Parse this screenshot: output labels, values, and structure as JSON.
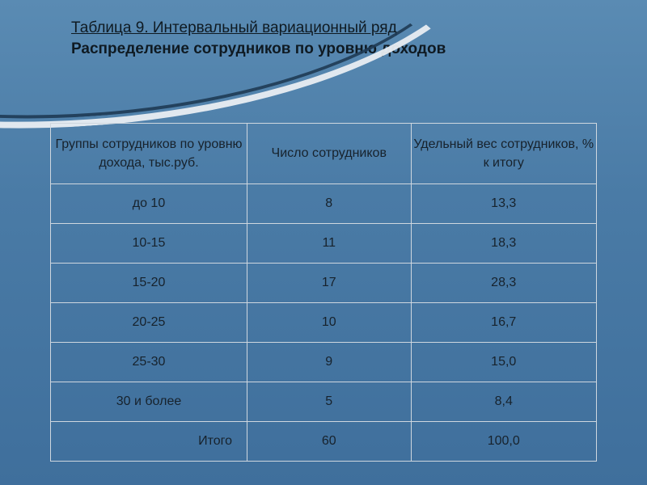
{
  "header": {
    "line1": "Таблица 9. Интервальный вариационный ряд",
    "line2": "Распределение сотрудников по уровню доходов"
  },
  "table": {
    "columns": {
      "group": "Группы сотрудников по уровню дохода, тыс.руб.",
      "count": "Число сотрудников",
      "share": "Удельный вес сотрудников, % к итогу"
    },
    "column_widths_pct": [
      36,
      30,
      34
    ],
    "border_color": "#cfd7df",
    "text_color": "#17222c",
    "font_size_pt": 12,
    "rows": [
      {
        "group": "до 10",
        "count": "8",
        "share": "13,3"
      },
      {
        "group": "10-15",
        "count": "11",
        "share": "18,3"
      },
      {
        "group": "15-20",
        "count": "17",
        "share": "28,3"
      },
      {
        "group": "20-25",
        "count": "10",
        "share": "16,7"
      },
      {
        "group": "25-30",
        "count": "9",
        "share": "15,0"
      },
      {
        "group": "30 и более",
        "count": "5",
        "share": "8,4"
      }
    ],
    "total": {
      "label": "Итого",
      "count": "60",
      "share": "100,0"
    }
  },
  "style": {
    "background_gradient": [
      "#5a8bb3",
      "#4a7ba6",
      "#3f6f9c"
    ],
    "swoosh_outer_color": "#e9eef3",
    "swoosh_inner_color": "#1f3b55",
    "heading_color": "#0f1a22",
    "heading_fontsize_pt": 14
  }
}
